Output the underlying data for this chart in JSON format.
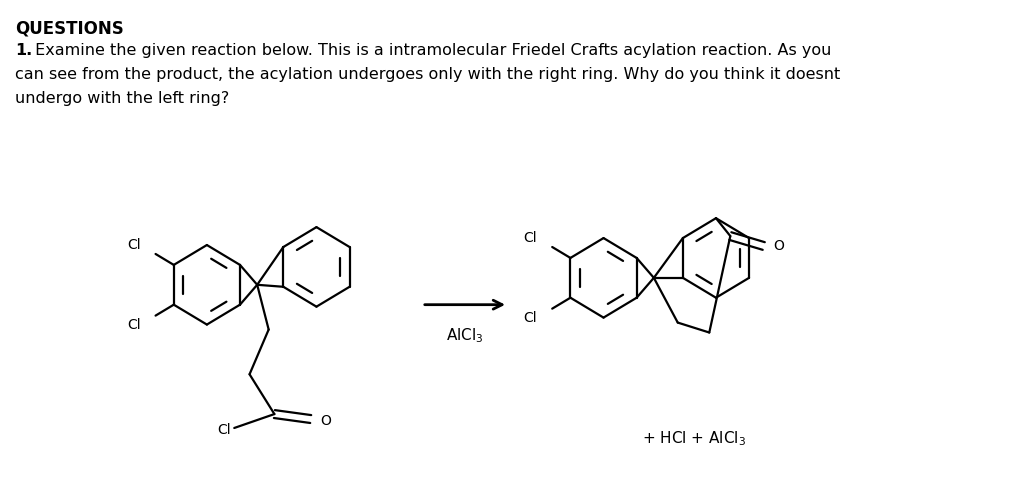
{
  "title": "QUESTIONS",
  "q1_bold": "1.",
  "q1_line1": " Examine the given reaction below. This is a intramolecular Friedel Crafts acylation reaction. As you",
  "q1_line2": "can see from the product, the acylation undergoes only with the right ring. Why do you think it doesnt",
  "q1_line3": "undergo with the left ring?",
  "alcl3_label": "AlCl$_3$",
  "byproducts": "+ HCl + AlCl$_3$",
  "bg_color": "#ffffff",
  "lw": 1.6,
  "lw_thick": 2.0
}
